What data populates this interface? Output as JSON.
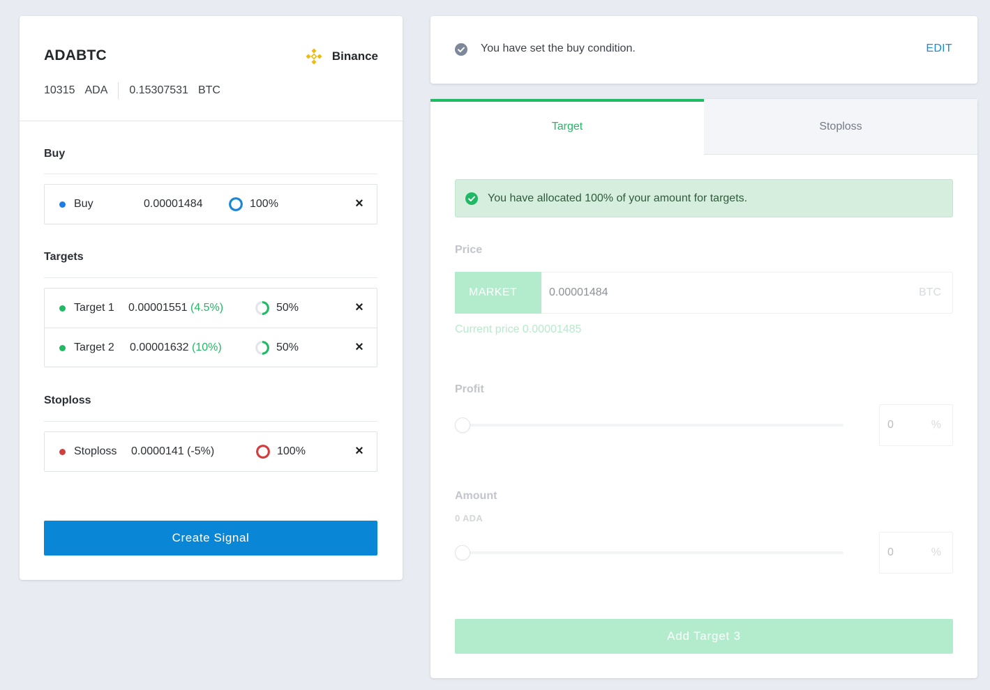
{
  "signal": {
    "pair": "ADABTC",
    "exchange": "Binance",
    "base_amount": "10315",
    "base_unit": "ADA",
    "quote_amount": "0.15307531",
    "quote_unit": "BTC"
  },
  "sections": {
    "buy_title": "Buy",
    "targets_title": "Targets",
    "stoploss_title": "Stoploss"
  },
  "buy": {
    "label": "Buy",
    "price": "0.00001484",
    "allocation": "100%",
    "allocation_value": 100,
    "dot_color": "#1b7fe6",
    "ring_color": "#1b86d6"
  },
  "targets": [
    {
      "label": "Target 1",
      "price": "0.00001551",
      "change": "(4.5%)",
      "allocation": "50%",
      "allocation_value": 50
    },
    {
      "label": "Target 2",
      "price": "0.00001632",
      "change": "(10%)",
      "allocation": "50%",
      "allocation_value": 50
    }
  ],
  "stoploss": {
    "label": "Stoploss",
    "price": "0.0000141",
    "change": "(-5%)",
    "allocation": "100%",
    "allocation_value": 100,
    "dot_color": "#d04040",
    "ring_color": "#d43c3c"
  },
  "create_button": "Create Signal",
  "notice": {
    "text": "You have set the buy condition.",
    "edit_label": "EDIT"
  },
  "tabs": [
    {
      "label": "Target",
      "active": true
    },
    {
      "label": "Stoploss",
      "active": false
    }
  ],
  "alert": {
    "text": "You have allocated 100% of your amount for targets."
  },
  "form": {
    "price_label": "Price",
    "market_label": "MARKET",
    "price_value": "0.00001484",
    "price_unit": "BTC",
    "current_price": "Current price 0.00001485",
    "profit_label": "Profit",
    "profit_value": "0",
    "profit_unit": "%",
    "profit_slider_value": 0,
    "amount_label": "Amount",
    "amount_sub": "0 ADA",
    "amount_value": "0",
    "amount_unit": "%",
    "amount_slider_value": 0,
    "add_button": "Add Target 3"
  },
  "colors": {
    "primary_blue": "#0987d6",
    "green": "#1fba63",
    "green_light": "#b2eccc"
  }
}
